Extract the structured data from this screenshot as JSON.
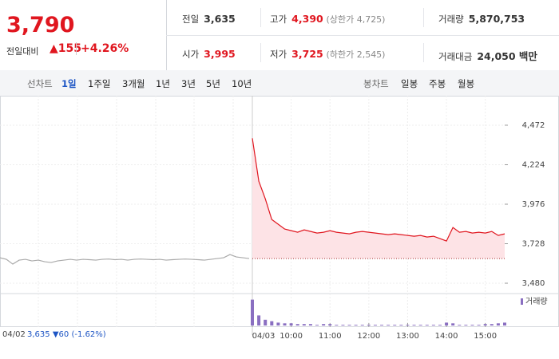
{
  "quote": {
    "price": "3,790",
    "change_label": "전일대비",
    "change": "▲155",
    "change_pct": "+4.26%",
    "prev_close_label": "전일",
    "prev_close": "3,635",
    "open_label": "시가",
    "open": "3,995",
    "high_label": "고가",
    "high": "4,390",
    "upper_limit": "(상한가 4,725)",
    "low_label": "저가",
    "low": "3,725",
    "lower_limit": "(하한가 2,545)",
    "volume_label": "거래량",
    "volume": "5,870,753",
    "amount_label": "거래대금",
    "amount": "24,050 백만"
  },
  "tabs": {
    "line_label": "선차트",
    "line_periods": [
      "1일",
      "1주일",
      "3개월",
      "1년",
      "3년",
      "5년",
      "10년"
    ],
    "active": "1일",
    "candle_label": "봉차트",
    "candle_periods": [
      "일봉",
      "주봉",
      "월봉"
    ]
  },
  "prev_day": {
    "date": "04/02",
    "close": "3,635",
    "change": "▼60",
    "change_pct": "(-1.62%)"
  },
  "chart_data": {
    "type": "line",
    "ylim": [
      3430,
      4617
    ],
    "yticks": [
      {
        "value": 4472,
        "label": "4,472"
      },
      {
        "value": 4224,
        "label": "4,224"
      },
      {
        "value": 3976,
        "label": "3,976"
      },
      {
        "value": 3728,
        "label": "3,728"
      },
      {
        "value": 3480,
        "label": "3,480"
      }
    ],
    "ref_value": 3635,
    "categories": [
      "04/03",
      null,
      null,
      null,
      null,
      null,
      "10:00",
      null,
      null,
      null,
      null,
      null,
      "11:00",
      null,
      null,
      null,
      null,
      null,
      "12:00",
      null,
      null,
      null,
      null,
      null,
      "13:00",
      null,
      null,
      null,
      null,
      null,
      "14:00",
      null,
      null,
      null,
      null,
      null,
      "15:00",
      null,
      null,
      null
    ],
    "series": [
      {
        "name": "04/02",
        "color": "#aaaaaa",
        "values": [
          3640,
          3630,
          3600,
          3625,
          3630,
          3620,
          3625,
          3615,
          3610,
          3620,
          3625,
          3630,
          3625,
          3630,
          3628,
          3625,
          3630,
          3632,
          3628,
          3630,
          3625,
          3630,
          3632,
          3630,
          3628,
          3630,
          3625,
          3628,
          3630,
          3632,
          3630,
          3628,
          3625,
          3630,
          3635,
          3640,
          3660,
          3645,
          3640,
          3635
        ]
      },
      {
        "name": "04/03",
        "color": "#e0161f",
        "values": [
          4390,
          4120,
          4010,
          3880,
          3850,
          3820,
          3810,
          3800,
          3815,
          3805,
          3795,
          3800,
          3810,
          3800,
          3795,
          3790,
          3800,
          3805,
          3800,
          3795,
          3790,
          3785,
          3790,
          3785,
          3780,
          3775,
          3780,
          3770,
          3775,
          3760,
          3745,
          3830,
          3800,
          3805,
          3795,
          3800,
          3795,
          3805,
          3780,
          3790
        ]
      }
    ],
    "volume": {
      "name": "거래량",
      "color": "#8a6fc1",
      "ylim": [
        0,
        40
      ],
      "values": [
        36,
        14,
        8,
        6,
        4,
        3,
        3,
        2,
        2,
        2,
        1,
        2,
        2,
        1,
        1,
        1,
        1,
        1,
        1,
        1,
        1,
        1,
        1,
        1,
        1,
        1,
        1,
        1,
        1,
        1,
        4,
        3,
        1,
        1,
        1,
        1,
        2,
        2,
        3,
        4
      ]
    }
  }
}
